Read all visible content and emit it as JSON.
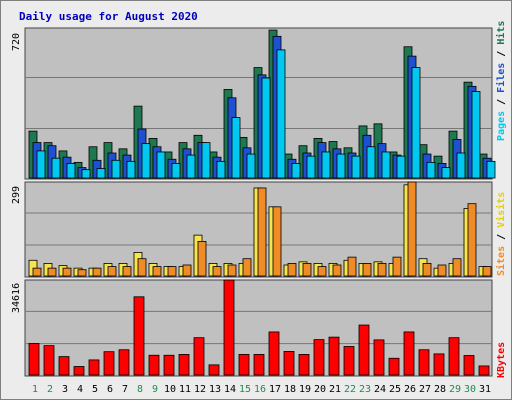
{
  "title": "Daily usage for August 2020",
  "colors": {
    "hits": "#1e7850",
    "files": "#1e50d2",
    "pages": "#00c8f0",
    "visits": "#f08c28",
    "sites": "#f5e650",
    "kbytes": "#ff0000",
    "plot_bg": "#c0c0c0",
    "weekend_label": "#1e8c50",
    "weekday_label": "#000000",
    "title": "#0000c0"
  },
  "labels": {
    "panel1_max": "720",
    "panel2_max": "299",
    "panel3_max": "34616",
    "legend_right_1": [
      "Pages",
      "Files",
      "Hits"
    ],
    "legend_right_2": [
      "Sites",
      "Visits"
    ],
    "legend_right_3": [
      "KBytes"
    ]
  },
  "chart_data": {
    "type": "bar",
    "title": "Daily usage for August 2020",
    "categories": [
      "1",
      "2",
      "3",
      "4",
      "5",
      "6",
      "7",
      "8",
      "9",
      "10",
      "11",
      "12",
      "13",
      "14",
      "15",
      "16",
      "17",
      "18",
      "19",
      "20",
      "21",
      "22",
      "23",
      "24",
      "25",
      "26",
      "27",
      "28",
      "29",
      "30",
      "31"
    ],
    "weekend_days": [
      "1",
      "2",
      "8",
      "9",
      "15",
      "16",
      "22",
      "23",
      "29",
      "30"
    ],
    "panels": [
      {
        "ylim": [
          0,
          720
        ],
        "series": [
          {
            "name": "Hits",
            "values": [
              225,
              170,
              130,
              75,
              150,
              170,
              140,
              345,
              190,
              125,
              170,
              205,
              125,
              425,
              195,
              530,
              710,
              115,
              155,
              190,
              175,
              145,
              250,
              260,
              125,
              630,
              160,
              105,
              225,
              460,
              115
            ]
          },
          {
            "name": "Files",
            "values": [
              170,
              155,
              100,
              50,
              85,
              120,
              110,
              235,
              150,
              90,
              140,
              170,
              100,
              385,
              145,
              495,
              680,
              90,
              120,
              170,
              140,
              120,
              205,
              165,
              110,
              585,
              115,
              70,
              185,
              440,
              95
            ]
          },
          {
            "name": "Pages",
            "values": [
              130,
              95,
              70,
              40,
              45,
              85,
              80,
              165,
              125,
              70,
              110,
              170,
              80,
              290,
              115,
              480,
              615,
              70,
              105,
              125,
              115,
              105,
              150,
              125,
              105,
              530,
              75,
              50,
              120,
              415,
              80
            ]
          }
        ]
      },
      {
        "ylim": [
          0,
          299
        ],
        "series": [
          {
            "name": "Sites",
            "values": [
              50,
              40,
              33,
              25,
              25,
              40,
              40,
              75,
              40,
              30,
              30,
              130,
              40,
              40,
              40,
              280,
              220,
              35,
              45,
              40,
              40,
              50,
              40,
              45,
              40,
              290,
              55,
              25,
              40,
              215,
              30
            ]
          },
          {
            "name": "Visits",
            "values": [
              25,
              25,
              25,
              20,
              25,
              30,
              30,
              55,
              30,
              30,
              35,
              110,
              30,
              35,
              55,
              280,
              220,
              40,
              40,
              30,
              35,
              60,
              40,
              40,
              60,
              300,
              40,
              35,
              55,
              230,
              30
            ]
          }
        ]
      },
      {
        "ylim": [
          0,
          34616
        ],
        "series": [
          {
            "name": "KBytes",
            "values": [
              11500,
              10700,
              6700,
              3100,
              5500,
              8500,
              9200,
              28500,
              7200,
              7200,
              7500,
              13600,
              3700,
              34600,
              7500,
              7500,
              15700,
              8600,
              7500,
              12900,
              13800,
              10400,
              18200,
              12800,
              6100,
              15700,
              9200,
              7700,
              13600,
              7100,
              3300
            ]
          }
        ]
      }
    ]
  }
}
